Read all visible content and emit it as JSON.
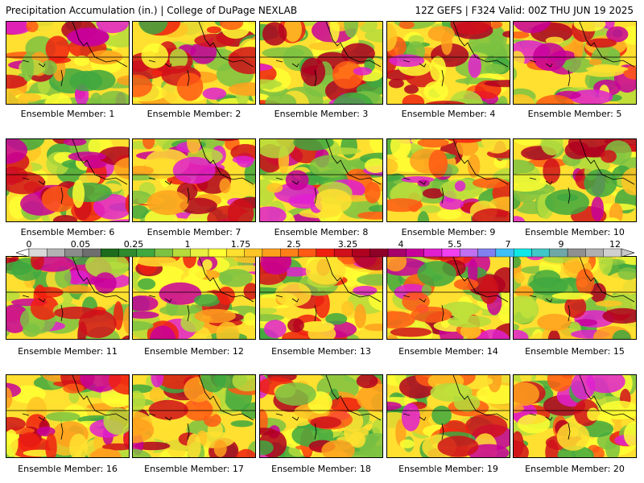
{
  "header": {
    "left": "Precipitation Accumulation (in.) | College of DuPage NEXLAB",
    "right": "12Z GEFS | F324 Valid: 00Z THU JUN 19 2025"
  },
  "legend": {
    "ticks": [
      "0",
      "0.05",
      "0.25",
      "1",
      "1.75",
      "2.5",
      "3.25",
      "4",
      "5.5",
      "7",
      "9",
      "12"
    ],
    "colors": [
      "#d9d9d9",
      "#b3b3b3",
      "#8c8c8c",
      "#6e6e6e",
      "#1d6b1d",
      "#2e8b2e",
      "#3fa83f",
      "#7dc242",
      "#b5dc3c",
      "#e8f040",
      "#ffff33",
      "#ffe030",
      "#ffc425",
      "#ffa01d",
      "#ff8018",
      "#ff5a14",
      "#f02010",
      "#d0101a",
      "#b00020",
      "#8e0028",
      "#a8006a",
      "#c8009a",
      "#e020d0",
      "#f040f0",
      "#c070f0",
      "#8080f0",
      "#40c0f8",
      "#10e8e8",
      "#40c8c8",
      "#70a8a8",
      "#909090",
      "#b0b0b0",
      "#d0d0d0"
    ]
  },
  "panels": [
    "Ensemble Member: 1",
    "Ensemble Member: 2",
    "Ensemble Member: 3",
    "Ensemble Member: 4",
    "Ensemble Member: 5",
    "Ensemble Member: 6",
    "Ensemble Member: 7",
    "Ensemble Member: 8",
    "Ensemble Member: 9",
    "Ensemble Member: 10",
    "Ensemble Member: 11",
    "Ensemble Member: 12",
    "Ensemble Member: 13",
    "Ensemble Member: 14",
    "Ensemble Member: 15",
    "Ensemble Member: 16",
    "Ensemble Member: 17",
    "Ensemble Member: 18",
    "Ensemble Member: 19",
    "Ensemble Member: 20"
  ]
}
